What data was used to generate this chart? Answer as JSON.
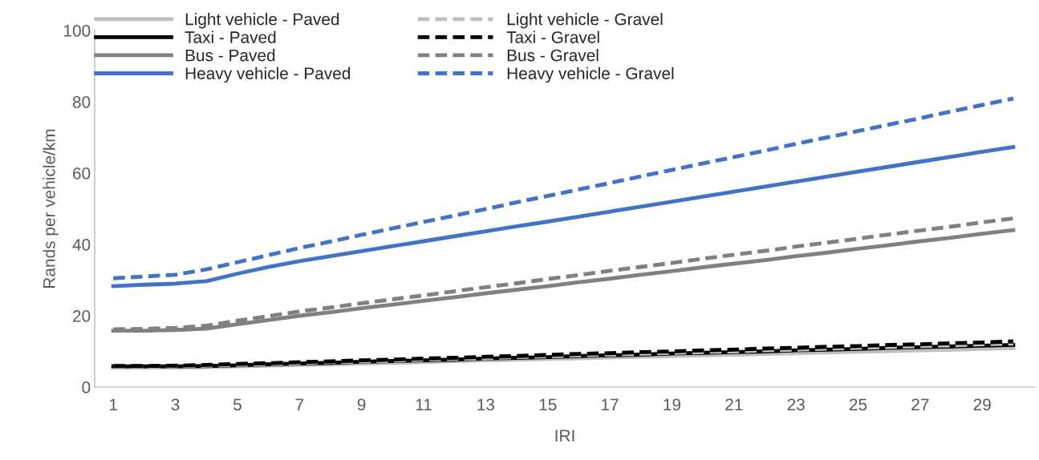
{
  "chart_data": {
    "type": "line",
    "xlabel": "IRI",
    "ylabel": "Rands per vehicle/km",
    "categories": [
      "1",
      null,
      "3",
      null,
      "5",
      null,
      "7",
      null,
      "9",
      null,
      "11",
      null,
      "13",
      null,
      "15",
      null,
      "17",
      null,
      "19",
      null,
      "21",
      null,
      "23",
      null,
      "25",
      null,
      "27",
      null,
      "29",
      null
    ],
    "ylim": [
      0,
      100
    ],
    "yticks": [
      0,
      20,
      40,
      60,
      80,
      100
    ],
    "grid": false,
    "legend": "top left",
    "marker": "none",
    "series": [
      {
        "name": "Light vehicle - Paved",
        "color": "#bfbfbf",
        "line_style": "solid",
        "values": [
          5.5,
          5.5,
          5.5,
          5.6,
          5.8,
          6.0,
          6.2,
          6.4,
          6.6,
          6.8,
          7.0,
          7.3,
          7.5,
          7.7,
          7.9,
          8.1,
          8.3,
          8.5,
          8.7,
          8.9,
          9.1,
          9.3,
          9.5,
          9.7,
          9.9,
          10.1,
          10.3,
          10.5,
          10.7,
          10.9
        ]
      },
      {
        "name": "Taxi - Paved",
        "color": "#000000",
        "line_style": "solid",
        "values": [
          5.8,
          5.8,
          5.8,
          5.9,
          6.1,
          6.4,
          6.6,
          6.8,
          7.1,
          7.3,
          7.5,
          7.7,
          8.0,
          8.2,
          8.4,
          8.7,
          8.9,
          9.1,
          9.4,
          9.6,
          9.8,
          10.0,
          10.3,
          10.5,
          10.7,
          11.0,
          11.2,
          11.4,
          11.6,
          11.8
        ]
      },
      {
        "name": "Bus - Paved",
        "color": "#808080",
        "line_style": "solid",
        "values": [
          15.8,
          15.8,
          16.0,
          16.4,
          17.6,
          18.8,
          20.0,
          21.0,
          22.1,
          23.1,
          24.2,
          25.2,
          26.3,
          27.3,
          28.3,
          29.4,
          30.4,
          31.5,
          32.5,
          33.6,
          34.6,
          35.6,
          36.7,
          37.7,
          38.8,
          39.8,
          40.9,
          41.9,
          43.0,
          44.0
        ]
      },
      {
        "name": "Heavy vehicle - Paved",
        "color": "#4472c4",
        "line_style": "solid",
        "values": [
          28.3,
          28.7,
          29.0,
          29.7,
          31.8,
          33.7,
          35.3,
          36.7,
          38.1,
          39.5,
          40.9,
          42.3,
          43.7,
          45.1,
          46.4,
          47.8,
          49.2,
          50.6,
          52.0,
          53.4,
          54.8,
          56.2,
          57.6,
          59.0,
          60.4,
          61.8,
          63.2,
          64.6,
          66.0,
          67.3
        ]
      },
      {
        "name": "Light vehicle - Gravel",
        "color": "#bfbfbf",
        "line_style": "dashed",
        "values": [
          5.7,
          5.7,
          5.8,
          6.0,
          6.2,
          6.5,
          6.7,
          7.0,
          7.2,
          7.4,
          7.7,
          7.9,
          8.1,
          8.4,
          8.6,
          8.9,
          9.1,
          9.3,
          9.6,
          9.8,
          10.0,
          10.3,
          10.5,
          10.8,
          11.0,
          11.2,
          11.5,
          11.7,
          12.0,
          12.2
        ]
      },
      {
        "name": "Taxi - Gravel",
        "color": "#000000",
        "line_style": "dashed",
        "values": [
          5.9,
          5.9,
          6.0,
          6.2,
          6.5,
          6.7,
          7.0,
          7.2,
          7.5,
          7.7,
          8.0,
          8.2,
          8.5,
          8.7,
          9.0,
          9.3,
          9.5,
          9.8,
          10.0,
          10.3,
          10.5,
          10.8,
          11.0,
          11.3,
          11.5,
          11.8,
          12.0,
          12.3,
          12.5,
          12.8
        ]
      },
      {
        "name": "Bus - Gravel",
        "color": "#808080",
        "line_style": "dashed",
        "values": [
          16.2,
          16.3,
          16.6,
          17.2,
          18.6,
          19.9,
          21.2,
          22.3,
          23.5,
          24.6,
          25.7,
          26.9,
          28.0,
          29.1,
          30.3,
          31.4,
          32.6,
          33.7,
          34.8,
          36.0,
          37.1,
          38.2,
          39.4,
          40.5,
          41.6,
          42.8,
          43.9,
          45.0,
          46.2,
          47.3
        ]
      },
      {
        "name": "Heavy vehicle - Gravel",
        "color": "#4472c4",
        "line_style": "dashed",
        "values": [
          30.5,
          31.0,
          31.5,
          33.0,
          35.0,
          37.0,
          39.0,
          40.8,
          42.7,
          44.5,
          46.3,
          48.1,
          49.9,
          51.8,
          53.6,
          55.4,
          57.2,
          59.1,
          60.9,
          62.7,
          64.5,
          66.3,
          68.2,
          70.0,
          71.8,
          73.6,
          75.4,
          77.3,
          79.1,
          80.9
        ]
      }
    ]
  }
}
